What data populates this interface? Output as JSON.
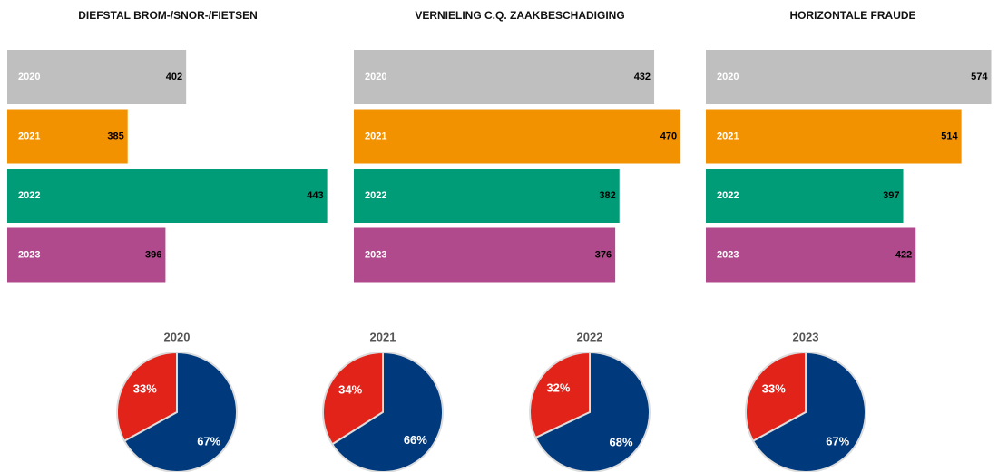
{
  "chart_data": [
    {
      "type": "bar",
      "title": "DIEFSTAL BROM-/SNOR-/FIETSEN",
      "categories": [
        "2020",
        "2021",
        "2022",
        "2023"
      ],
      "values": [
        402,
        385,
        443,
        396
      ],
      "colors": [
        "#bfbfbf",
        "#f39200",
        "#009b77",
        "#b04a8c"
      ],
      "xlim": [
        350,
        446
      ]
    },
    {
      "type": "bar",
      "title": "VERNIELING C.Q. ZAAKBESCHADIGING",
      "categories": [
        "2020",
        "2021",
        "2022",
        "2023"
      ],
      "values": [
        432,
        470,
        382,
        376
      ],
      "colors": [
        "#bfbfbf",
        "#f39200",
        "#009b77",
        "#b04a8c"
      ],
      "xlim": [
        0,
        475
      ]
    },
    {
      "type": "bar",
      "title": "HORIZONTALE FRAUDE",
      "categories": [
        "2020",
        "2021",
        "2022",
        "2023"
      ],
      "values": [
        574,
        514,
        397,
        422
      ],
      "colors": [
        "#bfbfbf",
        "#f39200",
        "#009b77",
        "#b04a8c"
      ],
      "xlim": [
        0,
        584
      ]
    },
    {
      "type": "pie",
      "title": "2020",
      "values": [
        33,
        67
      ],
      "value_labels": [
        "33%",
        "67%"
      ],
      "colors": [
        "#e2231a",
        "#003a7d"
      ]
    },
    {
      "type": "pie",
      "title": "2021",
      "values": [
        34,
        66
      ],
      "value_labels": [
        "34%",
        "66%"
      ],
      "colors": [
        "#e2231a",
        "#003a7d"
      ]
    },
    {
      "type": "pie",
      "title": "2022",
      "values": [
        32,
        68
      ],
      "value_labels": [
        "32%",
        "68%"
      ],
      "colors": [
        "#e2231a",
        "#003a7d"
      ]
    },
    {
      "type": "pie",
      "title": "2023",
      "values": [
        33,
        67
      ],
      "value_labels": [
        "33%",
        "67%"
      ],
      "colors": [
        "#e2231a",
        "#003a7d"
      ]
    }
  ]
}
